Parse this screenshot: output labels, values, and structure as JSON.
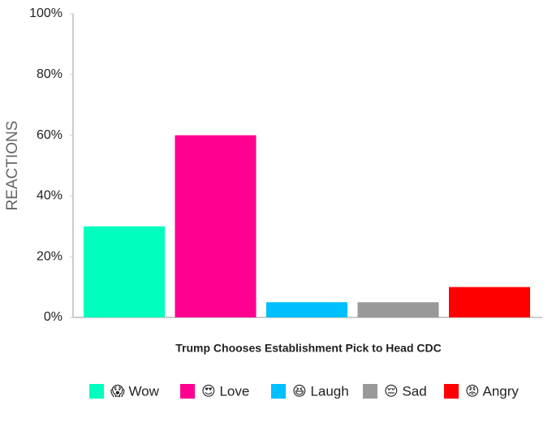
{
  "chart_data": {
    "type": "bar",
    "xlabel": "Trump Chooses Establishment Pick to Head CDC",
    "ylabel": "REACTIONS",
    "categories": [
      "😱 Wow",
      "😍 Love",
      "😆 Laugh",
      "😔 Sad",
      "😡 Angry"
    ],
    "values": [
      30,
      60,
      5,
      5,
      10
    ],
    "colors": [
      "#00ffbf",
      "#ff0090",
      "#00bfff",
      "#999999",
      "#ff0000"
    ],
    "ylim": [
      0,
      100
    ],
    "yticks": [
      {
        "value": 0,
        "label": "0%"
      },
      {
        "value": 20,
        "label": "20%"
      },
      {
        "value": 40,
        "label": "40%"
      },
      {
        "value": 60,
        "label": "60%"
      },
      {
        "value": 80,
        "label": "80%"
      },
      {
        "value": 100,
        "label": "100%"
      }
    ],
    "grid": false,
    "legend": "bottom"
  }
}
